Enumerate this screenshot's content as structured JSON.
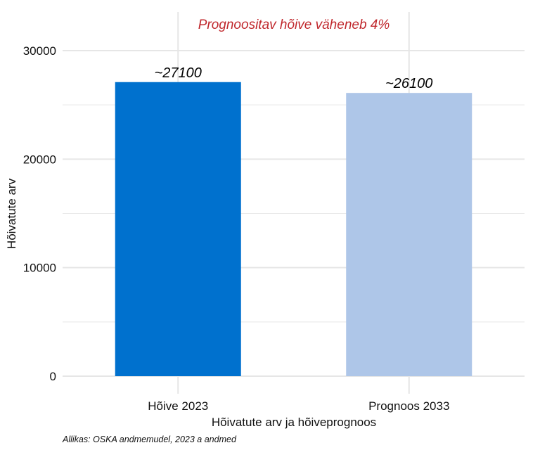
{
  "chart_data": {
    "type": "bar",
    "subtitle": "Prognoositav hõive väheneb 4%",
    "categories": [
      "Hõive 2023",
      "Prognoos 2033"
    ],
    "values": [
      27100,
      26100
    ],
    "data_labels": [
      "~27100",
      "~26100"
    ],
    "bar_colors": [
      "#0071CE",
      "#AEC6E8"
    ],
    "xlabel": "Hõivatute arv ja hõiveprognoos",
    "ylabel": "Hõivatute arv",
    "ylim": [
      0,
      32000
    ],
    "yticks": [
      0,
      10000,
      20000,
      30000
    ],
    "ytick_labels": [
      "0",
      "10000",
      "20000",
      "30000"
    ],
    "grid": true,
    "caption": "Allikas: OSKA andmemudel, 2023 a andmed",
    "subtitle_color": "#C0282D",
    "grid_color": "#E6E6E6"
  }
}
